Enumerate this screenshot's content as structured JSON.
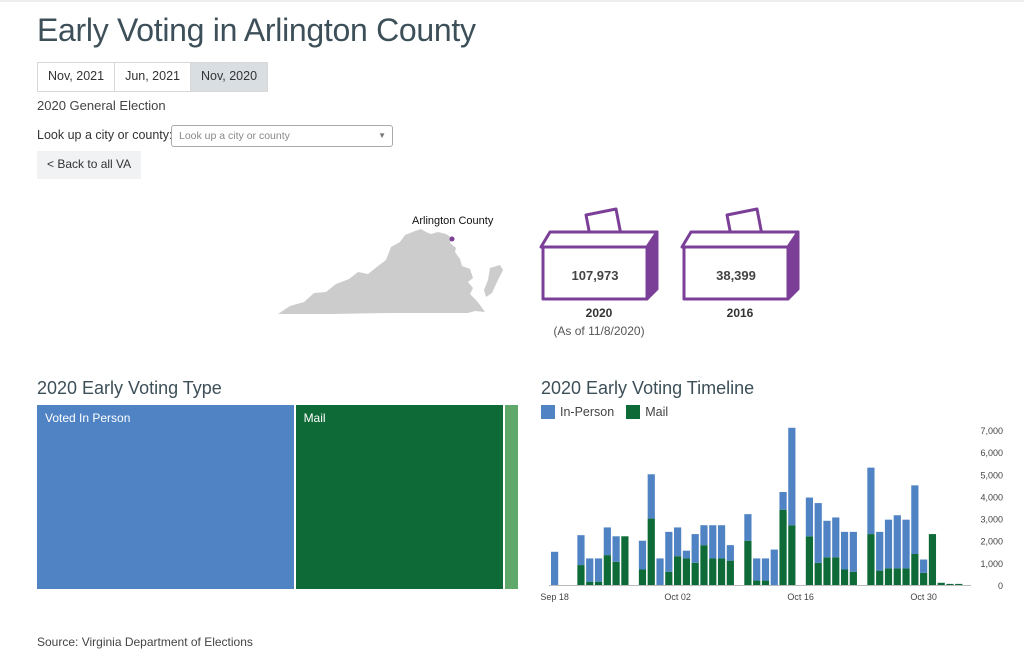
{
  "page": {
    "title": "Early Voting in Arlington County",
    "tabs": [
      {
        "label": "Nov, 2021",
        "active": false
      },
      {
        "label": "Jun, 2021",
        "active": false
      },
      {
        "label": "Nov, 2020",
        "active": true
      }
    ],
    "election_name": "2020 General Election",
    "lookup_label": "Look up a city or county:",
    "lookup_placeholder": "Look up a city or county",
    "back_button": "< Back to all VA",
    "map_label": "Arlington County",
    "source": "Source: Virginia Department of Elections"
  },
  "ballot_boxes": [
    {
      "count": "107,973",
      "year": "2020",
      "note": "(As of 11/8/2020)"
    },
    {
      "count": "38,399",
      "year": "2016",
      "note": ""
    }
  ],
  "colors": {
    "in_person": "#5083c4",
    "mail": "#0e6b38",
    "other": "#5fa869",
    "box_outline": "#7b3f98",
    "map": "#cccccc",
    "heading": "#3d4f58"
  },
  "chart_data": [
    {
      "type": "treemap",
      "title": "2020 Early Voting Type",
      "categories": [
        "Voted In Person",
        "Mail",
        ""
      ],
      "values": [
        55800,
        45200,
        2800
      ]
    },
    {
      "type": "bar",
      "stacked": true,
      "title": "2020 Early Voting Timeline",
      "legend": [
        "In-Person",
        "Mail"
      ],
      "legend_position": "top-left",
      "x": [
        "2020-09-18",
        "2020-09-19",
        "2020-09-20",
        "2020-09-21",
        "2020-09-22",
        "2020-09-23",
        "2020-09-24",
        "2020-09-25",
        "2020-09-26",
        "2020-09-27",
        "2020-09-28",
        "2020-09-29",
        "2020-09-30",
        "2020-10-01",
        "2020-10-02",
        "2020-10-03",
        "2020-10-04",
        "2020-10-05",
        "2020-10-06",
        "2020-10-07",
        "2020-10-08",
        "2020-10-09",
        "2020-10-10",
        "2020-10-11",
        "2020-10-12",
        "2020-10-13",
        "2020-10-14",
        "2020-10-15",
        "2020-10-16",
        "2020-10-17",
        "2020-10-18",
        "2020-10-19",
        "2020-10-20",
        "2020-10-21",
        "2020-10-22",
        "2020-10-23",
        "2020-10-24",
        "2020-10-25",
        "2020-10-26",
        "2020-10-27",
        "2020-10-28",
        "2020-10-29",
        "2020-10-30",
        "2020-10-31",
        "2020-11-01",
        "2020-11-02",
        "2020-11-03",
        "2020-11-04"
      ],
      "x_ticks": [
        "Sep 18",
        "Oct 02",
        "Oct 16",
        "Oct 30"
      ],
      "series": [
        {
          "name": "In-Person",
          "values": [
            1500,
            0,
            0,
            1350,
            1050,
            1050,
            1250,
            1150,
            0,
            0,
            1300,
            2000,
            1200,
            1800,
            1300,
            350,
            1300,
            900,
            1500,
            1500,
            700,
            0,
            1200,
            1000,
            1000,
            1600,
            800,
            4400,
            0,
            1750,
            2700,
            1650,
            1800,
            1700,
            1800,
            0,
            3000,
            1750,
            2200,
            2400,
            2200,
            3100,
            600,
            0,
            0,
            0,
            0,
            0
          ]
        },
        {
          "name": "Mail",
          "values": [
            0,
            0,
            0,
            900,
            150,
            150,
            1350,
            1050,
            2200,
            0,
            700,
            3000,
            0,
            600,
            1300,
            1200,
            1000,
            1800,
            1200,
            1200,
            1100,
            0,
            2000,
            200,
            200,
            0,
            3400,
            2700,
            0,
            2200,
            1000,
            1250,
            1250,
            700,
            600,
            0,
            2300,
            650,
            750,
            750,
            750,
            1400,
            550,
            2300,
            100,
            50,
            50,
            0
          ]
        }
      ],
      "ylim": [
        0,
        7000
      ],
      "y_ticks": [
        "0",
        "1,000",
        "2,000",
        "3,000",
        "4,000",
        "5,000",
        "6,000",
        "7,000"
      ],
      "y_axis_side": "right"
    }
  ]
}
